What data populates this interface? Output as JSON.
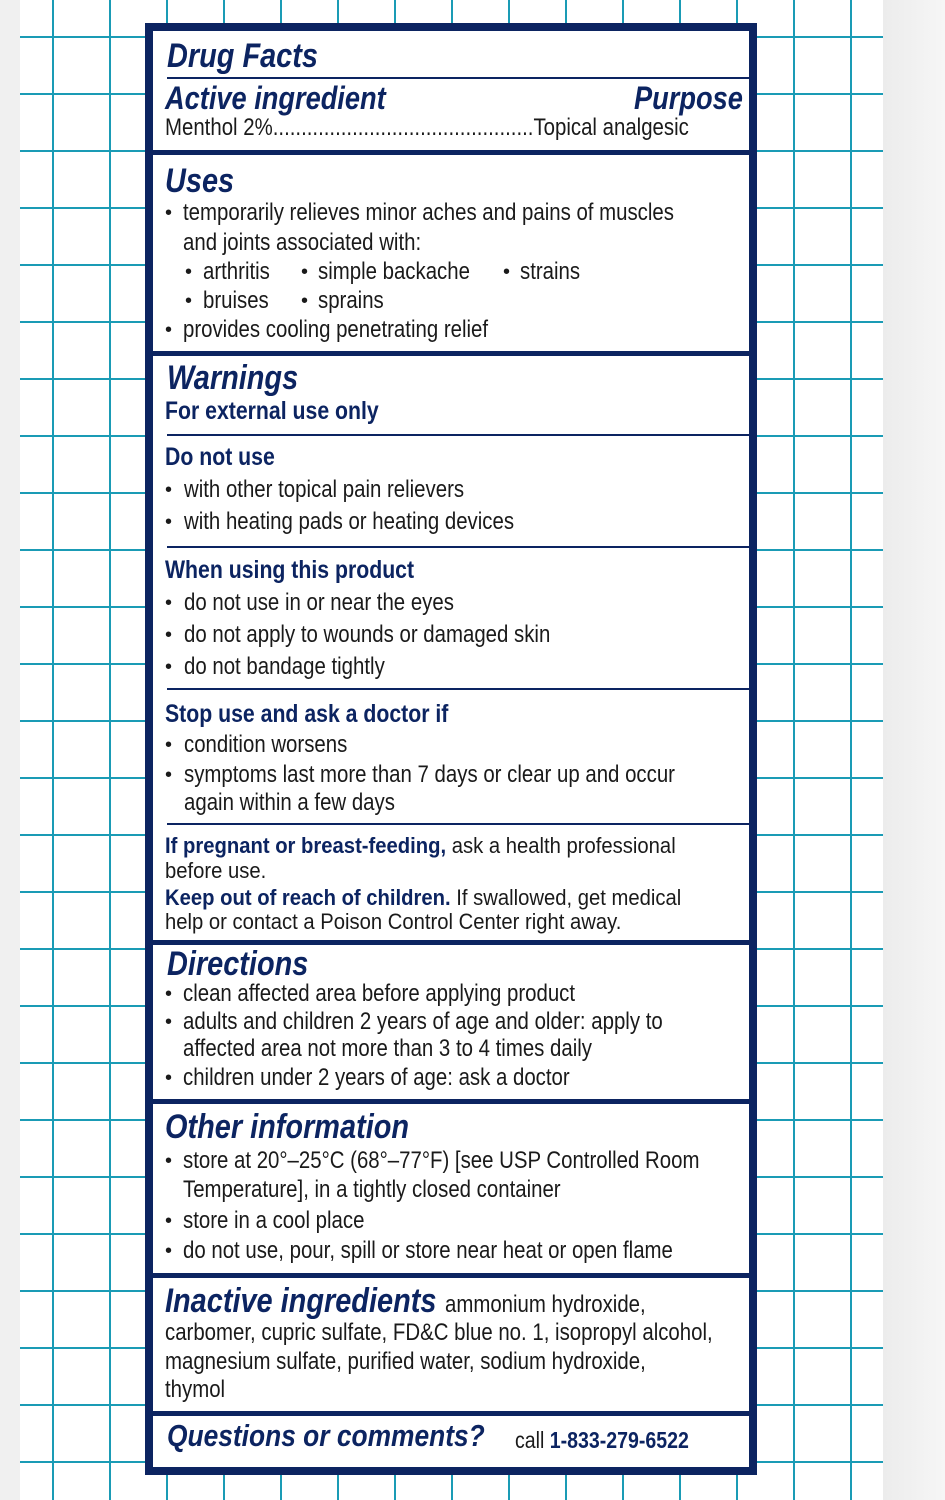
{
  "title": "Drug Facts",
  "active": {
    "heading": "Active ingredient",
    "purpose_heading": "Purpose",
    "ingredient": "Menthol 2%",
    "dots": "..............................................",
    "purpose": "Topical analgesic"
  },
  "uses": {
    "heading": "Uses",
    "line1": "temporarily relieves minor aches and pains of muscles",
    "line1b": "and joints associated with:",
    "items": [
      "arthritis",
      "simple backache",
      "strains",
      "bruises",
      "sprains"
    ],
    "line2": "provides cooling penetrating relief"
  },
  "warnings": {
    "heading": "Warnings",
    "external": "For external use only",
    "do_not_use": {
      "heading": "Do not use",
      "items": [
        "with other topical pain relievers",
        "with heating pads or heating devices"
      ]
    },
    "when_using": {
      "heading": "When using this product",
      "items": [
        "do not use in or near the eyes",
        "do not apply to wounds or damaged skin",
        "do not bandage tightly"
      ]
    },
    "stop_use": {
      "heading": "Stop use and ask a doctor if",
      "items": [
        "condition worsens",
        "symptoms last more than 7 days or clear up and occur",
        "again within a few days"
      ]
    },
    "pregnant_bold": "If pregnant or breast-feeding,",
    "pregnant_text": "ask a health professional",
    "pregnant_text2": "before use.",
    "keep_bold": "Keep out of reach of children.",
    "keep_text": "If swallowed, get medical",
    "keep_text2": "help or contact a Poison Control Center right away."
  },
  "directions": {
    "heading": "Directions",
    "items": [
      "clean affected area before applying product",
      "adults and children 2 years of age and older: apply to",
      "affected area not more than 3 to 4 times daily",
      "children under 2 years of age: ask a doctor"
    ]
  },
  "other": {
    "heading": "Other information",
    "items": [
      "store at 20°–25°C (68°–77°F) [see USP Controlled Room",
      "Temperature], in a tightly closed container",
      "store in a cool place",
      "do not use, pour, spill or store near heat or open flame"
    ]
  },
  "inactive": {
    "heading": "Inactive ingredients",
    "lines": [
      "ammonium hydroxide,",
      "carbomer, cupric sulfate, FD&C blue no. 1, isopropyl alcohol,",
      "magnesium sulfate, purified water, sodium hydroxide,",
      "thymol"
    ]
  },
  "questions": {
    "heading": "Questions or comments?",
    "call": "call",
    "phone": "1-833-279-6522"
  },
  "bullet": "•"
}
